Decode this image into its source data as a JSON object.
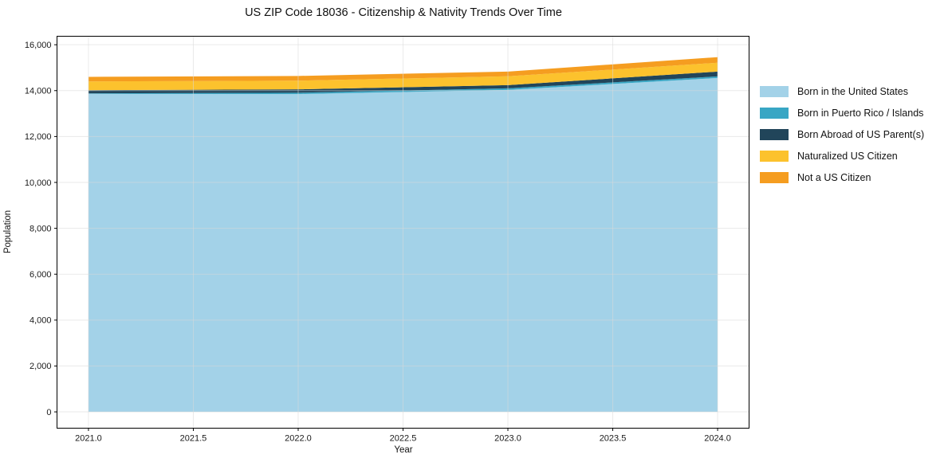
{
  "chart_data": {
    "type": "area",
    "stacked": true,
    "title": "US ZIP Code 18036 - Citizenship & Nativity Trends Over Time",
    "xlabel": "Year",
    "ylabel": "Population",
    "x": [
      2021,
      2022,
      2023,
      2024
    ],
    "series": [
      {
        "name": "Born in the United States",
        "color": "#a3d2e8",
        "values": [
          13860,
          13850,
          14030,
          14550
        ]
      },
      {
        "name": "Born in Puerto Rico / Islands",
        "color": "#38a6c4",
        "values": [
          20,
          60,
          70,
          70
        ]
      },
      {
        "name": "Born Abroad of US Parent(s)",
        "color": "#21455a",
        "values": [
          140,
          145,
          140,
          210
        ]
      },
      {
        "name": "Naturalized US Citizen",
        "color": "#fcc22d",
        "values": [
          380,
          380,
          385,
          385
        ]
      },
      {
        "name": "Not a US Citizen",
        "color": "#f59d20",
        "values": [
          200,
          205,
          205,
          245
        ]
      }
    ],
    "totals": [
      14600,
      14640,
      14830,
      15460
    ],
    "xlim": [
      2020.85,
      2024.15
    ],
    "ylim": [
      -710,
      16370
    ],
    "x_ticks": [
      {
        "value": 2021.0,
        "label": "2021.0"
      },
      {
        "value": 2021.5,
        "label": "2021.5"
      },
      {
        "value": 2022.0,
        "label": "2022.0"
      },
      {
        "value": 2022.5,
        "label": "2022.5"
      },
      {
        "value": 2023.0,
        "label": "2023.0"
      },
      {
        "value": 2023.5,
        "label": "2023.5"
      },
      {
        "value": 2024.0,
        "label": "2024.0"
      }
    ],
    "y_ticks": [
      {
        "value": 0,
        "label": "0"
      },
      {
        "value": 2000,
        "label": "2,000"
      },
      {
        "value": 4000,
        "label": "4,000"
      },
      {
        "value": 6000,
        "label": "6,000"
      },
      {
        "value": 8000,
        "label": "8,000"
      },
      {
        "value": 10000,
        "label": "10,000"
      },
      {
        "value": 12000,
        "label": "12,000"
      },
      {
        "value": 14000,
        "label": "14,000"
      },
      {
        "value": 16000,
        "label": "16,000"
      }
    ],
    "grid": true,
    "legend_position": "right-outside",
    "colors": {
      "background": "#ffffff",
      "spine": "#000000",
      "grid": "#d9d9d9",
      "text": "#1a1a1a"
    }
  }
}
